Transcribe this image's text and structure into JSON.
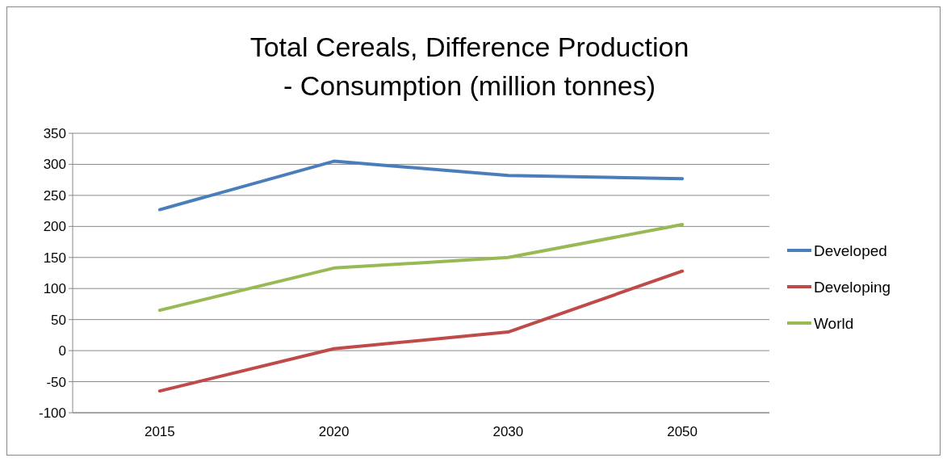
{
  "chart_data": {
    "type": "line",
    "title": "Total Cereals, Difference Production - Consumption (million tonnes)",
    "categories": [
      "2015",
      "2020",
      "2030",
      "2050"
    ],
    "series": [
      {
        "name": "Developed",
        "color": "#4a7ebb",
        "values": [
          227,
          305,
          282,
          277
        ]
      },
      {
        "name": "Developing",
        "color": "#be4b48",
        "values": [
          -65,
          3,
          30,
          128
        ]
      },
      {
        "name": "World",
        "color": "#98b954",
        "values": [
          65,
          133,
          150,
          203
        ]
      }
    ],
    "ylim": [
      -100,
      350
    ],
    "yticks": [
      -100,
      -50,
      0,
      50,
      100,
      150,
      200,
      250,
      300,
      350
    ],
    "grid": "y",
    "legend": "right",
    "marker": "none",
    "line_style": "solid"
  }
}
